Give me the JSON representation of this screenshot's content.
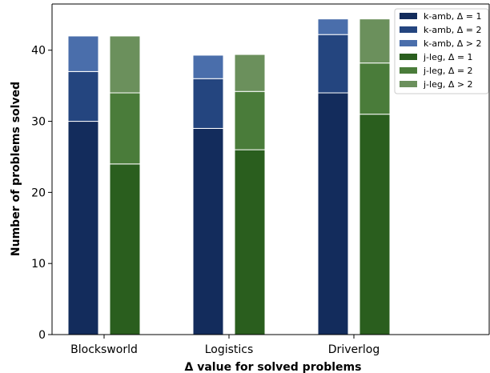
{
  "chart_data": {
    "type": "bar",
    "stacked": true,
    "grouped": true,
    "categories": [
      "Blocksworld",
      "Logistics",
      "Driverlog"
    ],
    "xlabel": "Δ value for solved problems",
    "ylabel": "Number of problems solved",
    "ylim": [
      0,
      46.5
    ],
    "yticks": [
      0,
      10,
      20,
      30,
      40
    ],
    "grid": false,
    "legend_position": "top-right",
    "groups": [
      {
        "name": "k-amb",
        "series": [
          {
            "name": "k-amb, Δ = 1",
            "color": "#132c5c",
            "values": [
              30,
              29,
              34
            ]
          },
          {
            "name": "k-amb, Δ = 2",
            "color": "#24457f",
            "values": [
              7,
              7,
              8.2
            ]
          },
          {
            "name": "k-amb, Δ > 2",
            "color": "#4a6eab",
            "values": [
              5,
              3.3,
              2.2
            ]
          }
        ]
      },
      {
        "name": "j-leg",
        "series": [
          {
            "name": "j-leg, Δ = 1",
            "color": "#2a5e1e",
            "values": [
              24,
              26,
              31
            ]
          },
          {
            "name": "j-leg, Δ = 2",
            "color": "#4a7c3a",
            "values": [
              10,
              8.2,
              7.2
            ]
          },
          {
            "name": "j-leg, Δ > 2",
            "color": "#6b905c",
            "values": [
              8,
              5.2,
              6.2
            ]
          }
        ]
      }
    ]
  }
}
